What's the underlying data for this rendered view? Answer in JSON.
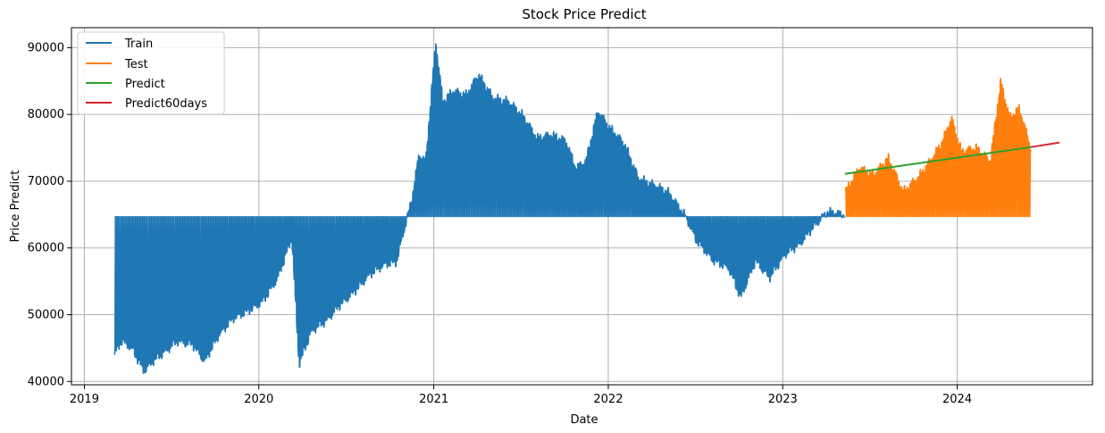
{
  "chart_data": {
    "type": "line",
    "title": "Stock Price Predict",
    "xlabel": "Date",
    "ylabel": "Price Predict",
    "xlim": [
      "2018-12-05",
      "2024-10-10"
    ],
    "ylim": [
      39500,
      93000
    ],
    "x_ticks": [
      "2019",
      "2020",
      "2021",
      "2022",
      "2023",
      "2024"
    ],
    "y_ticks": [
      40000,
      50000,
      60000,
      70000,
      80000,
      90000
    ],
    "grid": true,
    "legend_position": "top-left",
    "colors": {
      "Train": "#1f77b4",
      "Test": "#ff7f0e",
      "Predict": "#2ca02c",
      "Predict60days": "#d62728"
    },
    "series": [
      {
        "name": "Train",
        "baseline": 64700,
        "x_range": [
          "2019-03-05",
          "2023-05-11"
        ],
        "envelope_dates": [
          "2019-03-05",
          "2019-03-20",
          "2019-04-10",
          "2019-05-05",
          "2019-05-25",
          "2019-06-20",
          "2019-07-15",
          "2019-08-15",
          "2019-09-10",
          "2019-10-10",
          "2019-11-10",
          "2019-12-10",
          "2020-01-10",
          "2020-02-10",
          "2020-03-10",
          "2020-03-25",
          "2020-04-20",
          "2020-05-20",
          "2020-06-20",
          "2020-07-20",
          "2020-08-20",
          "2020-09-20",
          "2020-10-15",
          "2020-11-01",
          "2020-11-15",
          "2020-12-01",
          "2020-12-15",
          "2021-01-05",
          "2021-01-20",
          "2021-02-10",
          "2021-03-10",
          "2021-04-05",
          "2021-05-05",
          "2021-06-05",
          "2021-07-05",
          "2021-08-05",
          "2021-09-05",
          "2021-10-05",
          "2021-10-25",
          "2021-11-15",
          "2021-12-10",
          "2022-01-05",
          "2022-02-05",
          "2022-03-05",
          "2022-04-05",
          "2022-05-05",
          "2022-06-10",
          "2022-07-05",
          "2022-08-10",
          "2022-09-10",
          "2022-10-05",
          "2022-11-05",
          "2022-12-05",
          "2023-01-05",
          "2023-02-05",
          "2023-03-05",
          "2023-04-05",
          "2023-05-11"
        ],
        "envelope_values": [
          44000,
          46000,
          45000,
          41500,
          43000,
          44500,
          46000,
          45500,
          43000,
          47000,
          49500,
          50500,
          52000,
          55500,
          61500,
          42500,
          47500,
          49000,
          51500,
          53500,
          56000,
          57500,
          57800,
          63000,
          67000,
          74000,
          73000,
          91000,
          82000,
          83500,
          83000,
          86000,
          82500,
          82000,
          80000,
          76500,
          77000,
          76000,
          72000,
          73000,
          80500,
          78000,
          75500,
          70500,
          69500,
          68500,
          65000,
          61000,
          58000,
          57000,
          52500,
          58000,
          55500,
          59000,
          60500,
          63000,
          65500,
          65000
        ]
      },
      {
        "name": "Test",
        "baseline": 64700,
        "x_range": [
          "2023-05-12",
          "2024-06-03"
        ],
        "envelope_dates": [
          "2023-05-12",
          "2023-06-10",
          "2023-07-10",
          "2023-08-10",
          "2023-09-10",
          "2023-10-10",
          "2023-11-10",
          "2023-12-01",
          "2023-12-20",
          "2024-01-10",
          "2024-02-10",
          "2024-03-10",
          "2024-04-01",
          "2024-04-20",
          "2024-05-10",
          "2024-06-03"
        ],
        "envelope_values": [
          68500,
          72000,
          71000,
          73500,
          68500,
          70500,
          73500,
          76000,
          79500,
          74500,
          75000,
          73000,
          85000,
          79500,
          81000,
          75000
        ]
      },
      {
        "name": "Predict",
        "x": [
          "2023-05-11",
          "2024-06-03"
        ],
        "y": [
          71100,
          75100
        ]
      },
      {
        "name": "Predict60days",
        "x": [
          "2024-06-03",
          "2024-08-02"
        ],
        "y": [
          75100,
          75800
        ]
      }
    ]
  }
}
